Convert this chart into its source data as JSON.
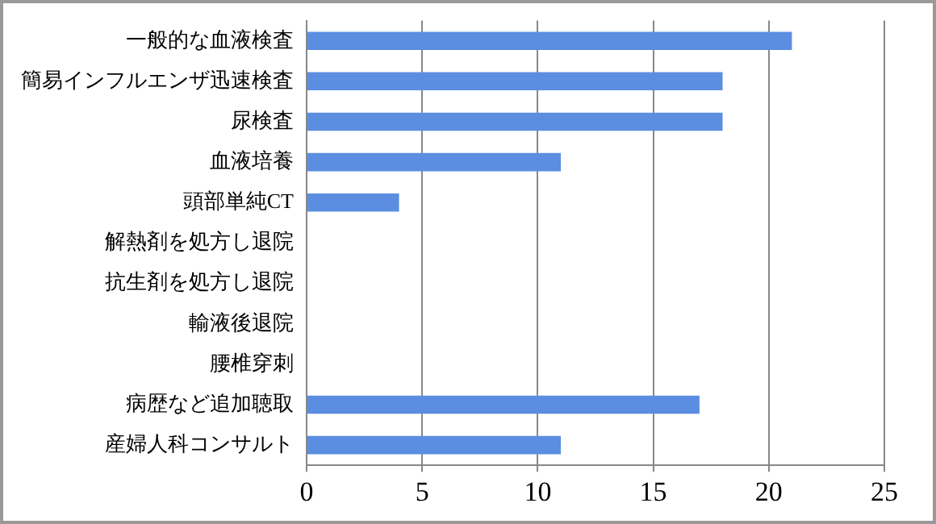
{
  "chart_data": {
    "type": "bar",
    "orientation": "horizontal",
    "categories": [
      "一般的な血液検査",
      "簡易インフルエンザ迅速検査",
      "尿検査",
      "血液培養",
      "頭部単純CT",
      "解熱剤を処方し退院",
      "抗生剤を処方し退院",
      "輸液後退院",
      "腰椎穿刺",
      "病歴など追加聴取",
      "産婦人科コンサルト"
    ],
    "values": [
      21,
      18,
      18,
      11,
      4,
      0,
      0,
      0,
      0,
      17,
      11
    ],
    "color": "#5b8ee0",
    "xlim": [
      0,
      25
    ],
    "xticks": [
      0,
      5,
      10,
      15,
      20,
      25
    ],
    "grid": "x",
    "legend": false
  }
}
